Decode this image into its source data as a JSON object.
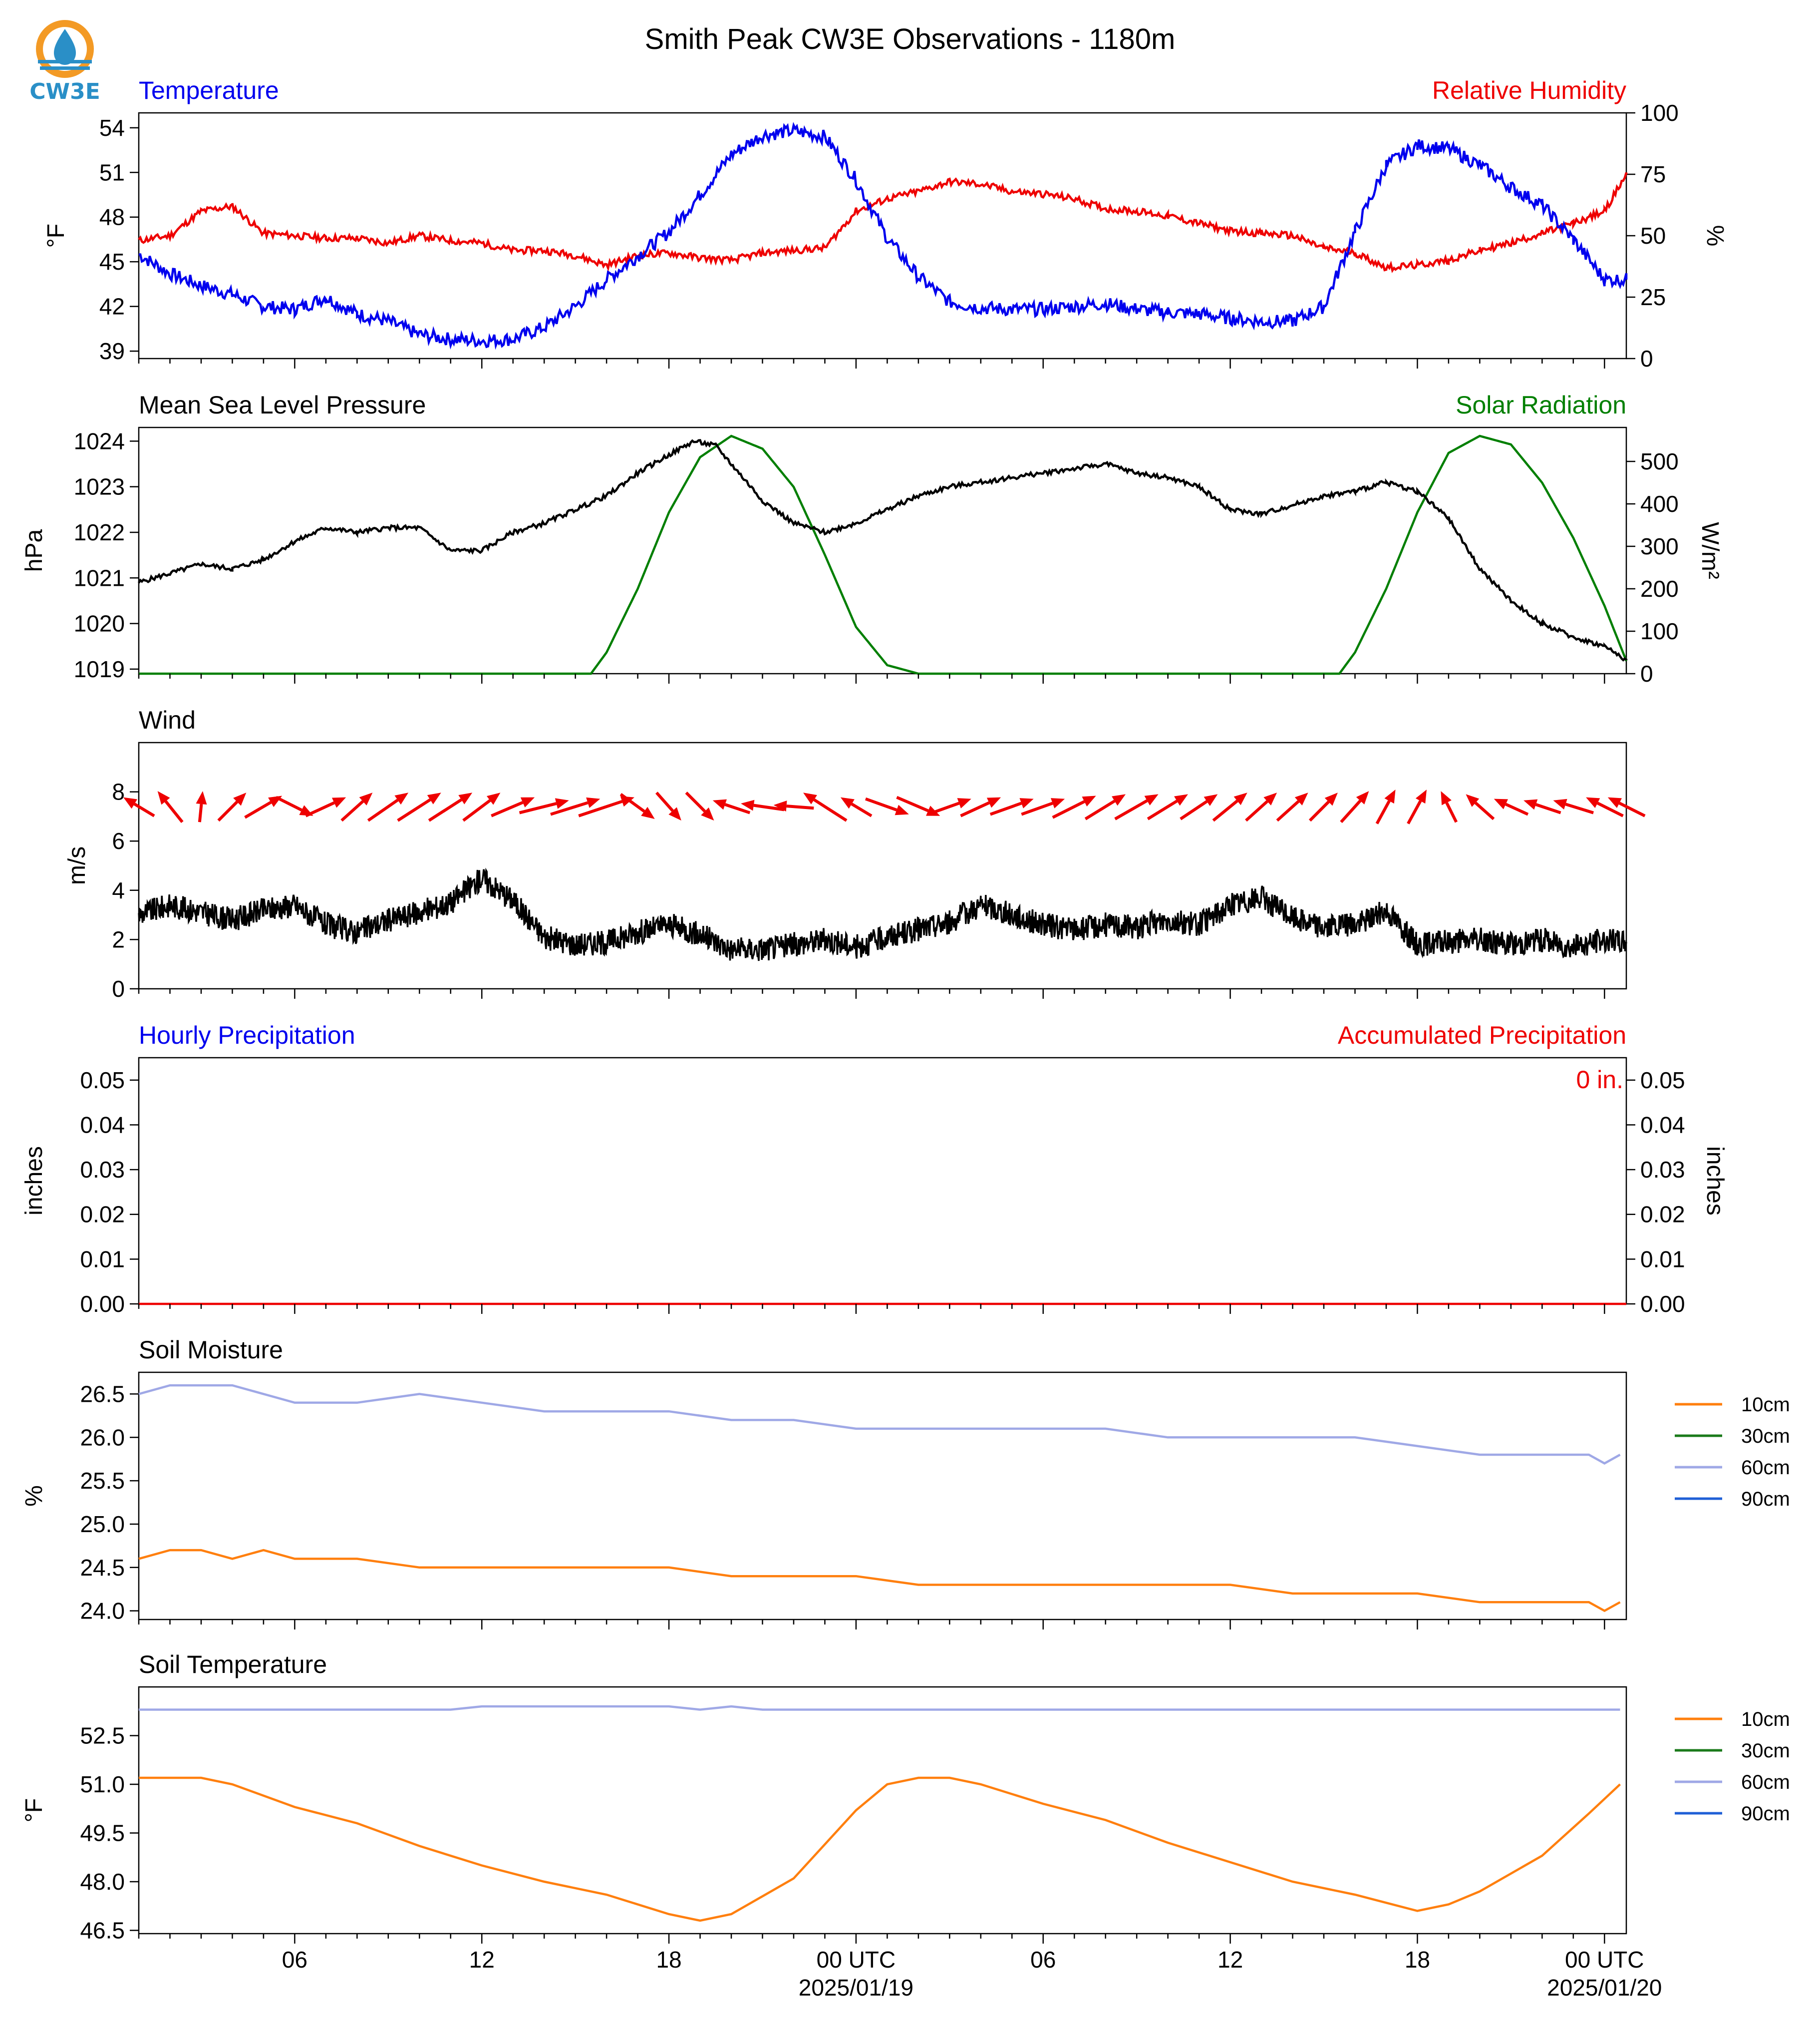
{
  "title": "Smith Peak CW3E Observations - 1180m",
  "logo_text": "CW3E",
  "colors": {
    "temperature": "#0000ee",
    "humidity": "#ee0000",
    "pressure": "#000000",
    "solar": "#007f00",
    "wind_arrow": "#ee0000",
    "wind_speed": "#000000",
    "precip": "#ee0000",
    "soil_10cm": "#ff7f0e",
    "soil_30cm": "#1a7a1a",
    "soil_60cm": "#9fa8e6",
    "soil_90cm": "#1f5fd6",
    "logo_orange": "#f39a25",
    "logo_blue": "#2a8fc7"
  },
  "x_axis": {
    "hours_range": [
      1,
      48.7
    ],
    "tick_hours": [
      6,
      12,
      18,
      24,
      30,
      36,
      42,
      48
    ],
    "tick_labels": [
      "06",
      "12",
      "18",
      "00 UTC",
      "06",
      "12",
      "18",
      "00 UTC"
    ],
    "date_labels": [
      {
        "hour": 24,
        "text": "2025/01/19"
      },
      {
        "hour": 48,
        "text": "2025/01/20"
      }
    ]
  },
  "panels": {
    "temp_rh": {
      "left_title": "Temperature",
      "right_title": "Relative Humidity",
      "ylabel_left": "°F",
      "ylabel_right": "%",
      "yticks_left": [
        "39",
        "42",
        "45",
        "48",
        "51",
        "54"
      ],
      "yticks_right": [
        "0",
        "25",
        "50",
        "75",
        "100"
      ]
    },
    "pressure_solar": {
      "left_title": "Mean Sea Level Pressure",
      "right_title": "Solar Radiation",
      "ylabel_left": "hPa",
      "ylabel_right": "W/m²",
      "yticks_left": [
        "1019",
        "1020",
        "1021",
        "1022",
        "1023",
        "1024"
      ],
      "yticks_right": [
        "0",
        "100",
        "200",
        "300",
        "400",
        "500"
      ]
    },
    "wind": {
      "left_title": "Wind",
      "ylabel_left": "m/s",
      "yticks_left": [
        "0",
        "2",
        "4",
        "6",
        "8"
      ]
    },
    "precip": {
      "left_title": "Hourly Precipitation",
      "right_title": "Accumulated Precipitation",
      "ylabel_left": "inches",
      "ylabel_right": "inches",
      "yticks_left": [
        "0.00",
        "0.01",
        "0.02",
        "0.03",
        "0.04",
        "0.05"
      ],
      "yticks_right": [
        "0.00",
        "0.01",
        "0.02",
        "0.03",
        "0.04",
        "0.05"
      ],
      "annotation": "0 in."
    },
    "soil_moisture": {
      "left_title": "Soil Moisture",
      "ylabel_left": "%",
      "yticks_left": [
        "24.0",
        "24.5",
        "25.0",
        "25.5",
        "26.0",
        "26.5"
      ]
    },
    "soil_temp": {
      "left_title": "Soil Temperature",
      "ylabel_left": "°F",
      "yticks_left": [
        "46.5",
        "48.0",
        "49.5",
        "51.0",
        "52.5"
      ]
    }
  },
  "legend_labels": [
    "10cm",
    "30cm",
    "60cm",
    "90cm"
  ],
  "chart_data": [
    {
      "type": "line",
      "name": "temperature_rh",
      "x_units": "hours since 2025-01-18 00 UTC",
      "series": [
        {
          "name": "Temperature",
          "axis": "left",
          "x": [
            1,
            2,
            3,
            4,
            5,
            6,
            7,
            8,
            9,
            10,
            11,
            12,
            13,
            14,
            15,
            16,
            17,
            18,
            19,
            20,
            21,
            22,
            23,
            24,
            25,
            26,
            27,
            28,
            29,
            30,
            31,
            32,
            33,
            34,
            35,
            36,
            37,
            38,
            39,
            40,
            41,
            42,
            43,
            44,
            45,
            46,
            47,
            48,
            48.7
          ],
          "values": [
            45.5,
            44.2,
            43.4,
            42.8,
            42.0,
            41.8,
            42.6,
            41.5,
            41.0,
            40.1,
            39.8,
            39.7,
            39.8,
            40.6,
            42.0,
            43.8,
            45.4,
            47.0,
            49.5,
            52.2,
            53.5,
            53.8,
            53.4,
            50.5,
            46.6,
            44.0,
            42.3,
            41.9,
            41.8,
            41.8,
            42.0,
            42.2,
            41.8,
            41.6,
            41.5,
            41.2,
            41.0,
            41.0,
            42.0,
            47.0,
            51.5,
            52.8,
            52.6,
            51.5,
            50.0,
            48.8,
            46.5,
            43.8,
            43.8
          ]
        },
        {
          "name": "Relative Humidity",
          "axis": "right",
          "x": [
            1,
            2,
            3,
            4,
            5,
            6,
            7,
            8,
            9,
            10,
            11,
            12,
            13,
            14,
            15,
            16,
            17,
            18,
            19,
            20,
            21,
            22,
            23,
            24,
            25,
            26,
            27,
            28,
            29,
            30,
            31,
            32,
            33,
            34,
            35,
            36,
            37,
            38,
            39,
            40,
            41,
            42,
            43,
            44,
            45,
            46,
            47,
            48,
            48.7
          ],
          "values": [
            48,
            50,
            60,
            62,
            51,
            50,
            49,
            49,
            47,
            50,
            48,
            47,
            44,
            44,
            42,
            38,
            42,
            43,
            41,
            40,
            43,
            44,
            45,
            60,
            65,
            68,
            72,
            71,
            68,
            67,
            65,
            61,
            60,
            58,
            55,
            52,
            51,
            50,
            45,
            43,
            37,
            38,
            40,
            44,
            47,
            51,
            55,
            60,
            75
          ]
        }
      ],
      "ylim_left": [
        38.5,
        55
      ],
      "ylim_right": [
        0,
        100
      ]
    },
    {
      "type": "line",
      "name": "pressure_solar",
      "series": [
        {
          "name": "Mean Sea Level Pressure",
          "axis": "left",
          "x": [
            1,
            2,
            3,
            4,
            5,
            6,
            7,
            8,
            9,
            10,
            11,
            12,
            13,
            14,
            15,
            16,
            17,
            18,
            18.8,
            19.5,
            20,
            21,
            22,
            23,
            24,
            25,
            26,
            27,
            28,
            29,
            30,
            31,
            32,
            33,
            34,
            35,
            36,
            37,
            38,
            39,
            40,
            41,
            42,
            43,
            44,
            45,
            46,
            47,
            48,
            48.7
          ],
          "values": [
            1020.9,
            1021.1,
            1021.3,
            1021.2,
            1021.4,
            1021.8,
            1022.1,
            1022.0,
            1022.1,
            1022.1,
            1021.6,
            1021.6,
            1022.0,
            1022.2,
            1022.5,
            1022.8,
            1023.3,
            1023.7,
            1024.0,
            1023.9,
            1023.5,
            1022.7,
            1022.2,
            1022.0,
            1022.2,
            1022.5,
            1022.8,
            1023.0,
            1023.1,
            1023.2,
            1023.3,
            1023.4,
            1023.5,
            1023.3,
            1023.2,
            1023.0,
            1022.5,
            1022.4,
            1022.6,
            1022.8,
            1022.9,
            1023.1,
            1022.9,
            1022.3,
            1021.2,
            1020.5,
            1020.0,
            1019.7,
            1019.5,
            1019.2
          ]
        },
        {
          "name": "Solar Radiation",
          "axis": "right",
          "x": [
            1,
            15.5,
            16,
            17,
            18,
            19,
            20,
            21,
            22,
            23,
            24,
            25,
            26,
            39.5,
            40,
            41,
            42,
            43,
            44,
            45,
            46,
            47,
            48,
            48.7
          ],
          "values": [
            0,
            0,
            50,
            200,
            380,
            510,
            560,
            530,
            440,
            280,
            110,
            20,
            0,
            0,
            50,
            200,
            380,
            520,
            560,
            540,
            450,
            320,
            160,
            30
          ]
        }
      ],
      "ylim_left": [
        1018.9,
        1024.3
      ],
      "ylim_right": [
        0,
        580
      ]
    },
    {
      "type": "line",
      "name": "wind",
      "series": [
        {
          "name": "Wind speed",
          "x": [
            1,
            2,
            3,
            4,
            5,
            6,
            7,
            8,
            9,
            10,
            11,
            12,
            13,
            14,
            15,
            16,
            17,
            18,
            19,
            20,
            21,
            22,
            23,
            24,
            25,
            26,
            27,
            28,
            29,
            30,
            31,
            32,
            33,
            34,
            35,
            36,
            37,
            38,
            39,
            40,
            41,
            42,
            43,
            44,
            45,
            46,
            47,
            48,
            48.7
          ],
          "values": [
            3.0,
            3.4,
            3.1,
            2.8,
            3.2,
            3.4,
            2.6,
            2.3,
            2.8,
            3.1,
            3.5,
            4.5,
            3.6,
            2.1,
            1.8,
            1.9,
            2.3,
            2.6,
            2.2,
            1.6,
            1.6,
            1.8,
            2.0,
            1.7,
            2.1,
            2.4,
            2.7,
            3.4,
            3.0,
            2.6,
            2.4,
            2.6,
            2.5,
            2.8,
            2.6,
            3.4,
            3.7,
            2.9,
            2.5,
            2.6,
            3.2,
            1.8,
            1.9,
            2.0,
            1.8,
            2.0,
            1.7,
            2.0,
            1.9
          ]
        }
      ],
      "wind_vectors": {
        "x": [
          1,
          2,
          3,
          4,
          5,
          6,
          7,
          8,
          9,
          10,
          11,
          12,
          13,
          14,
          15,
          16,
          17,
          18,
          19,
          20,
          21,
          22,
          23,
          24,
          25,
          26,
          27,
          28,
          29,
          30,
          31,
          32,
          33,
          34,
          35,
          36,
          37,
          38,
          39,
          40,
          41,
          42,
          43,
          44,
          45,
          46,
          47,
          48,
          48.7
        ],
        "u": [
          -1.0,
          -0.8,
          0.1,
          0.9,
          1.2,
          1.2,
          1.3,
          1.0,
          1.3,
          1.4,
          1.4,
          1.2,
          1.4,
          1.6,
          1.6,
          1.8,
          1.1,
          0.8,
          0.9,
          -1.2,
          -1.4,
          -1.3,
          -1.4,
          -1.0,
          1.4,
          1.4,
          1.4,
          1.3,
          1.4,
          1.4,
          1.4,
          1.3,
          1.4,
          1.3,
          1.2,
          1.1,
          1.0,
          1.0,
          0.9,
          0.9,
          0.6,
          0.6,
          -0.5,
          -0.9,
          -1.1,
          -1.2,
          -1.3,
          -1.2,
          -1.2
        ],
        "v": [
          0.6,
          1.0,
          1.0,
          0.9,
          0.7,
          -0.6,
          0.6,
          0.9,
          0.9,
          0.9,
          0.9,
          0.9,
          0.6,
          0.4,
          0.5,
          0.6,
          -0.8,
          -0.9,
          -0.9,
          0.4,
          0.2,
          0.1,
          0.9,
          0.6,
          -0.5,
          -0.6,
          0.5,
          0.6,
          0.5,
          0.5,
          0.7,
          0.8,
          0.8,
          0.8,
          0.8,
          0.9,
          0.9,
          0.9,
          0.9,
          1.0,
          1.1,
          1.1,
          1.0,
          0.8,
          0.5,
          0.4,
          0.4,
          0.6,
          0.6
        ]
      },
      "ylim": [
        0,
        10
      ]
    },
    {
      "type": "line",
      "name": "precipitation",
      "series": [
        {
          "name": "Accumulated Precipitation",
          "x": [
            1,
            48.7
          ],
          "values": [
            0,
            0
          ]
        }
      ],
      "ylim": [
        0,
        0.055
      ]
    },
    {
      "type": "line",
      "name": "soil_moisture",
      "series": [
        {
          "name": "10cm",
          "x": [
            1,
            2,
            3,
            4,
            5,
            6,
            8,
            10,
            12,
            14,
            16,
            18,
            20,
            22,
            24,
            26,
            28,
            30,
            32,
            34,
            36,
            38,
            40,
            42,
            44,
            46,
            47.5,
            48,
            48.5
          ],
          "values": [
            24.6,
            24.7,
            24.7,
            24.6,
            24.7,
            24.6,
            24.6,
            24.5,
            24.5,
            24.5,
            24.5,
            24.5,
            24.4,
            24.4,
            24.4,
            24.3,
            24.3,
            24.3,
            24.3,
            24.3,
            24.3,
            24.2,
            24.2,
            24.2,
            24.1,
            24.1,
            24.1,
            24.0,
            24.1
          ]
        },
        {
          "name": "60cm",
          "x": [
            1,
            2,
            3,
            4,
            5,
            6,
            8,
            10,
            12,
            14,
            16,
            18,
            20,
            22,
            24,
            26,
            28,
            30,
            32,
            34,
            36,
            38,
            40,
            42,
            44,
            46,
            47.5,
            48,
            48.5
          ],
          "values": [
            26.5,
            26.6,
            26.6,
            26.6,
            26.5,
            26.4,
            26.4,
            26.5,
            26.4,
            26.3,
            26.3,
            26.3,
            26.2,
            26.2,
            26.1,
            26.1,
            26.1,
            26.1,
            26.1,
            26.0,
            26.0,
            26.0,
            26.0,
            25.9,
            25.8,
            25.8,
            25.8,
            25.7,
            25.8
          ]
        }
      ],
      "ylim": [
        23.9,
        26.75
      ]
    },
    {
      "type": "line",
      "name": "soil_temperature",
      "series": [
        {
          "name": "10cm",
          "x": [
            1,
            3,
            4,
            6,
            8,
            10,
            12,
            14,
            16,
            18,
            19,
            20,
            22,
            24,
            25,
            26,
            27,
            28,
            30,
            32,
            34,
            36,
            38,
            40,
            42,
            43,
            44,
            46,
            47.5,
            48.5
          ],
          "values": [
            51.2,
            51.2,
            51.0,
            50.3,
            49.8,
            49.1,
            48.5,
            48.0,
            47.6,
            47.0,
            46.8,
            47.0,
            48.1,
            50.2,
            51.0,
            51.2,
            51.2,
            51.0,
            50.4,
            49.9,
            49.2,
            48.6,
            48.0,
            47.6,
            47.1,
            47.3,
            47.7,
            48.8,
            50.1,
            51.0
          ]
        },
        {
          "name": "60cm",
          "x": [
            1,
            10,
            11,
            12,
            13,
            18,
            19,
            20,
            21,
            48.5
          ],
          "values": [
            53.3,
            53.3,
            53.3,
            53.4,
            53.4,
            53.4,
            53.3,
            53.4,
            53.3,
            53.3
          ]
        }
      ],
      "ylim": [
        46.4,
        54.0
      ]
    }
  ]
}
